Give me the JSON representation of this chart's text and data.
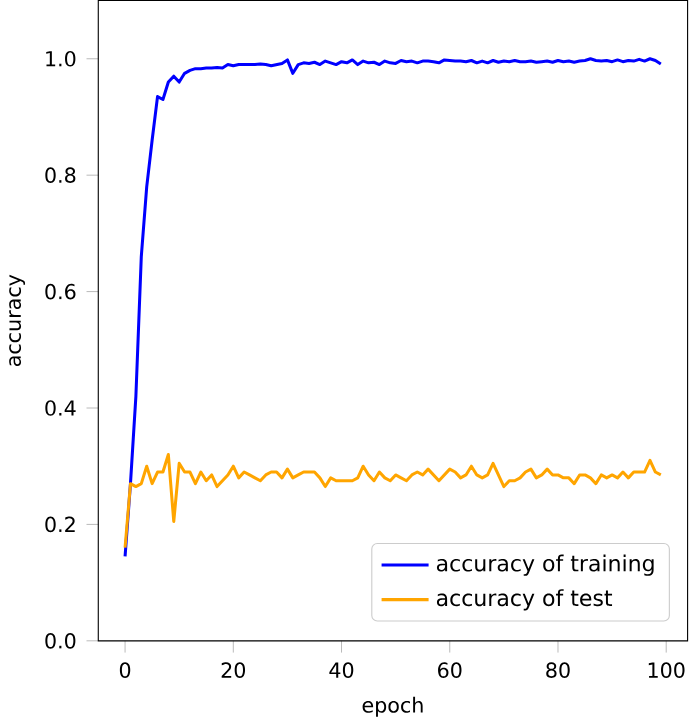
{
  "chart_data": {
    "type": "line",
    "xlabel": "epoch",
    "ylabel": "accuracy",
    "x": [
      0,
      1,
      2,
      3,
      4,
      5,
      6,
      7,
      8,
      9,
      10,
      11,
      12,
      13,
      14,
      15,
      16,
      17,
      18,
      19,
      20,
      21,
      22,
      23,
      24,
      25,
      26,
      27,
      28,
      29,
      30,
      31,
      32,
      33,
      34,
      35,
      36,
      37,
      38,
      39,
      40,
      41,
      42,
      43,
      44,
      45,
      46,
      47,
      48,
      49,
      50,
      51,
      52,
      53,
      54,
      55,
      56,
      57,
      58,
      59,
      60,
      61,
      62,
      63,
      64,
      65,
      66,
      67,
      68,
      69,
      70,
      71,
      72,
      73,
      74,
      75,
      76,
      77,
      78,
      79,
      80,
      81,
      82,
      83,
      84,
      85,
      86,
      87,
      88,
      89,
      90,
      91,
      92,
      93,
      94,
      95,
      96,
      97,
      98,
      99
    ],
    "series": [
      {
        "name": "accuracy of training",
        "color": "#0000ff",
        "values": [
          0.145,
          0.27,
          0.42,
          0.66,
          0.78,
          0.86,
          0.935,
          0.93,
          0.96,
          0.97,
          0.96,
          0.975,
          0.98,
          0.983,
          0.983,
          0.984,
          0.984,
          0.985,
          0.984,
          0.99,
          0.988,
          0.99,
          0.99,
          0.99,
          0.99,
          0.991,
          0.99,
          0.988,
          0.99,
          0.992,
          0.998,
          0.975,
          0.99,
          0.993,
          0.992,
          0.994,
          0.99,
          0.996,
          0.993,
          0.99,
          0.995,
          0.993,
          0.998,
          0.99,
          0.996,
          0.993,
          0.994,
          0.99,
          0.996,
          0.993,
          0.992,
          0.997,
          0.995,
          0.996,
          0.993,
          0.996,
          0.996,
          0.995,
          0.993,
          0.998,
          0.997,
          0.996,
          0.996,
          0.995,
          0.997,
          0.993,
          0.996,
          0.993,
          0.997,
          0.994,
          0.996,
          0.995,
          0.997,
          0.995,
          0.995,
          0.996,
          0.994,
          0.995,
          0.996,
          0.994,
          0.997,
          0.995,
          0.996,
          0.994,
          0.996,
          0.997,
          1.0,
          0.997,
          0.996,
          0.997,
          0.995,
          0.998,
          0.995,
          0.997,
          0.996,
          0.999,
          0.996,
          1.0,
          0.997,
          0.991
        ]
      },
      {
        "name": "accuracy of test",
        "color": "#ffa500",
        "values": [
          0.16,
          0.27,
          0.265,
          0.27,
          0.3,
          0.27,
          0.29,
          0.29,
          0.32,
          0.205,
          0.305,
          0.29,
          0.29,
          0.27,
          0.29,
          0.275,
          0.285,
          0.265,
          0.275,
          0.285,
          0.3,
          0.28,
          0.29,
          0.285,
          0.28,
          0.275,
          0.285,
          0.29,
          0.29,
          0.28,
          0.295,
          0.28,
          0.285,
          0.29,
          0.29,
          0.29,
          0.28,
          0.265,
          0.28,
          0.275,
          0.275,
          0.275,
          0.275,
          0.28,
          0.3,
          0.285,
          0.275,
          0.29,
          0.28,
          0.275,
          0.285,
          0.28,
          0.275,
          0.285,
          0.29,
          0.285,
          0.295,
          0.285,
          0.275,
          0.285,
          0.295,
          0.29,
          0.28,
          0.285,
          0.3,
          0.285,
          0.28,
          0.285,
          0.305,
          0.285,
          0.265,
          0.275,
          0.275,
          0.28,
          0.29,
          0.295,
          0.28,
          0.285,
          0.295,
          0.285,
          0.285,
          0.28,
          0.28,
          0.27,
          0.285,
          0.285,
          0.28,
          0.27,
          0.285,
          0.28,
          0.285,
          0.28,
          0.29,
          0.28,
          0.29,
          0.29,
          0.29,
          0.31,
          0.29,
          0.285
        ]
      }
    ],
    "xlim": [
      -4.95,
      103.95
    ],
    "ylim": [
      0,
      1.1
    ],
    "xticks": [
      0,
      20,
      40,
      60,
      80,
      100
    ],
    "yticks": [
      {
        "value": 0,
        "label": "0.0"
      },
      0.2,
      0.4,
      0.6,
      0.8,
      {
        "value": 1,
        "label": "1.0"
      }
    ],
    "legend": "bottom right",
    "grid": false,
    "marker": "none",
    "line_style": "solid"
  }
}
